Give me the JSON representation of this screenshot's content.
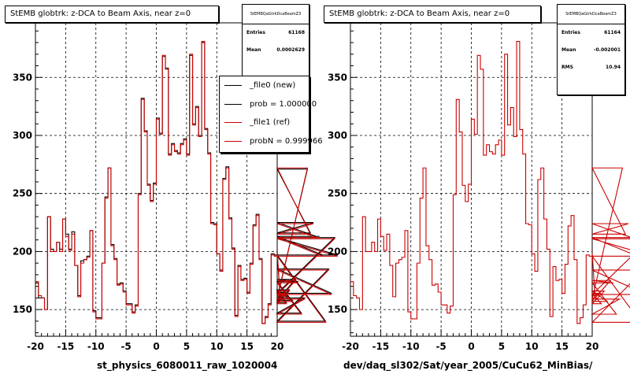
{
  "footnote": "",
  "panels": [
    {
      "title": "StEMB globtrk: z-DCA to Beam Axis, near z=0",
      "x_title": "st_physics_6080011_raw_1020004",
      "stats": {
        "name": "StEMBQaGtrkDcaBeamZ3",
        "rows": [
          {
            "label": "Entries",
            "value": "61168"
          },
          {
            "label": "Mean",
            "value": "0.0002629"
          }
        ]
      },
      "legend": {
        "entries": [
          {
            "label": "_file0 (new)",
            "color": "#000000"
          },
          {
            "label": "prob = 1.000000",
            "color": "#000000"
          },
          {
            "label": "_file1 (ref)",
            "color": "#cc0000"
          },
          {
            "label": "probN = 0.999966",
            "color": "#cc0000"
          }
        ]
      }
    },
    {
      "title": "StEMB globtrk: z-DCA to Beam Axis, near z=0",
      "x_title": "dev/daq_sl302/Sat/year_2005/CuCu62_MinBias/",
      "stats": {
        "name": "StEMBQaGtrkDcaBeamZ3",
        "rows": [
          {
            "label": "Entries",
            "value": "61164"
          },
          {
            "label": "Mean",
            "value": "-0.002001"
          },
          {
            "label": "RMS",
            "value": "10.94"
          }
        ]
      }
    }
  ],
  "chart_data": [
    {
      "type": "histogram",
      "title": "StEMB globtrk: z-DCA to Beam Axis, near z=0",
      "xlabel": "st_physics_6080011_raw_1020004",
      "ylabel": "",
      "xlim": [
        -20,
        20
      ],
      "ylim": [
        127,
        397
      ],
      "xticks": [
        -20,
        -15,
        -10,
        -5,
        0,
        5,
        10,
        15,
        20
      ],
      "yticks": [
        150,
        200,
        250,
        300,
        350
      ],
      "grid": true,
      "legend_position": "top-right",
      "bin_edges_start": -20,
      "bin_width": 0.5,
      "series": [
        {
          "name": "_file0 (new)",
          "color": "#000000",
          "values": [
            173,
            160,
            160,
            150,
            230,
            202,
            200,
            208,
            202,
            228,
            215,
            202,
            217,
            188,
            162,
            192,
            193,
            196,
            218,
            149,
            143,
            143,
            190,
            247,
            272,
            206,
            194,
            172,
            173,
            166,
            155,
            155,
            148,
            154,
            250,
            332,
            304,
            258,
            244,
            259,
            315,
            302,
            368,
            358,
            284,
            293,
            287,
            285,
            293,
            297,
            284,
            369,
            310,
            325,
            300,
            380,
            306,
            285,
            225,
            224,
            198,
            184,
            263,
            273,
            229,
            203,
            145,
            188,
            176,
            177,
            165,
            190,
            223,
            232,
            194,
            138,
            144,
            155,
            198,
            197,
            200,
            160,
            165,
            156,
            167,
            158,
            176,
            174,
            147,
            160,
            271,
            216,
            225,
            213,
            213,
            197,
            140,
            185,
            164,
            212,
            197
          ]
        },
        {
          "name": "_file1 (ref)",
          "color": "#cc0000",
          "values": [
            174,
            162,
            160,
            150,
            230,
            200,
            200,
            208,
            200,
            228,
            213,
            201,
            215,
            188,
            161,
            190,
            193,
            195,
            218,
            148,
            142,
            142,
            190,
            246,
            272,
            205,
            193,
            171,
            172,
            165,
            154,
            154,
            147,
            153,
            249,
            331,
            303,
            257,
            243,
            258,
            314,
            301,
            369,
            357,
            283,
            292,
            286,
            284,
            292,
            296,
            283,
            370,
            309,
            324,
            299,
            381,
            305,
            284,
            224,
            223,
            198,
            183,
            262,
            272,
            228,
            202,
            144,
            187,
            175,
            176,
            164,
            189,
            222,
            231,
            193,
            138,
            143,
            154,
            197,
            196,
            199,
            159,
            164,
            155,
            166,
            157,
            175,
            173,
            146,
            159,
            272,
            215,
            224,
            212,
            212,
            196,
            139,
            184,
            163,
            211,
            196
          ]
        }
      ]
    },
    {
      "type": "histogram",
      "title": "StEMB globtrk: z-DCA to Beam Axis, near z=0",
      "xlabel": "dev/daq_sl302/Sat/year_2005/CuCu62_MinBias/",
      "ylabel": "",
      "xlim": [
        -20,
        20
      ],
      "ylim": [
        127,
        397
      ],
      "xticks": [
        -20,
        -15,
        -10,
        -5,
        0,
        5,
        10,
        15,
        20
      ],
      "yticks": [
        150,
        200,
        250,
        300,
        350
      ],
      "grid": true,
      "bin_edges_start": -20,
      "bin_width": 0.5,
      "series": [
        {
          "name": "",
          "color": "#cc0000",
          "values": [
            174,
            162,
            160,
            150,
            230,
            200,
            200,
            208,
            200,
            228,
            213,
            201,
            215,
            188,
            161,
            190,
            193,
            195,
            218,
            148,
            142,
            142,
            190,
            246,
            272,
            205,
            193,
            171,
            172,
            165,
            154,
            154,
            147,
            153,
            249,
            331,
            303,
            257,
            243,
            258,
            314,
            301,
            369,
            357,
            283,
            292,
            286,
            284,
            292,
            296,
            283,
            370,
            309,
            324,
            299,
            381,
            305,
            284,
            224,
            223,
            198,
            183,
            262,
            272,
            228,
            202,
            144,
            187,
            175,
            176,
            164,
            189,
            222,
            231,
            193,
            138,
            143,
            154,
            197,
            196,
            199,
            159,
            164,
            155,
            166,
            157,
            175,
            173,
            146,
            159,
            272,
            215,
            224,
            212,
            212,
            196,
            139,
            184,
            163,
            211,
            196
          ]
        }
      ]
    }
  ]
}
